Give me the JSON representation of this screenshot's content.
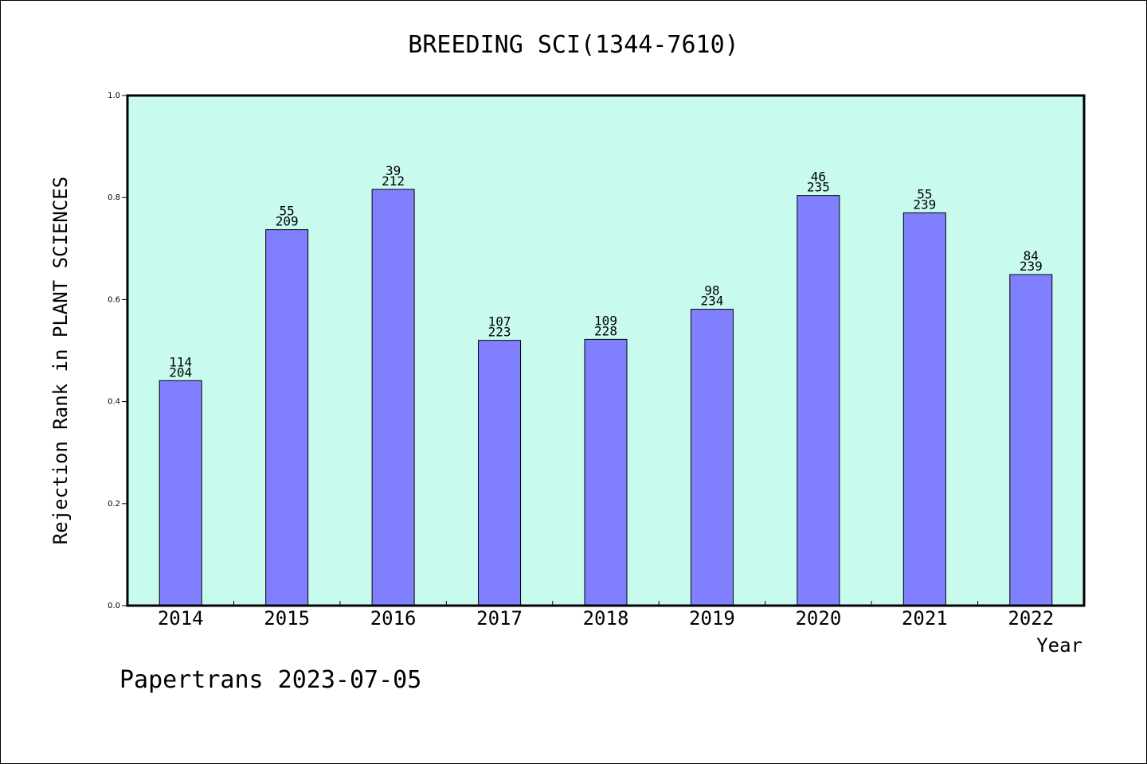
{
  "chart_data": {
    "type": "bar",
    "title": "BREEDING SCI(1344-7610)",
    "xlabel": "Year",
    "ylabel": "Rejection Rank in PLANT SCIENCES",
    "footer": "Papertrans 2023-07-05",
    "categories": [
      "2014",
      "2015",
      "2016",
      "2017",
      "2018",
      "2019",
      "2020",
      "2021",
      "2022"
    ],
    "values": [
      0.441,
      0.737,
      0.816,
      0.52,
      0.522,
      0.581,
      0.804,
      0.77,
      0.649
    ],
    "rank_labels": [
      "114",
      "55",
      "39",
      "107",
      "109",
      "98",
      "46",
      "55",
      "84"
    ],
    "total_labels": [
      "204",
      "209",
      "212",
      "223",
      "228",
      "234",
      "235",
      "239",
      "239"
    ],
    "ylim": [
      0,
      1.0
    ],
    "yticks": [
      "0.0",
      "0.2",
      "0.4",
      "0.6",
      "0.8",
      "1.0"
    ],
    "grid": false,
    "colors": {
      "bar": "#8080ff",
      "plot_background": "#c8fbee",
      "axis": "#000000"
    }
  }
}
